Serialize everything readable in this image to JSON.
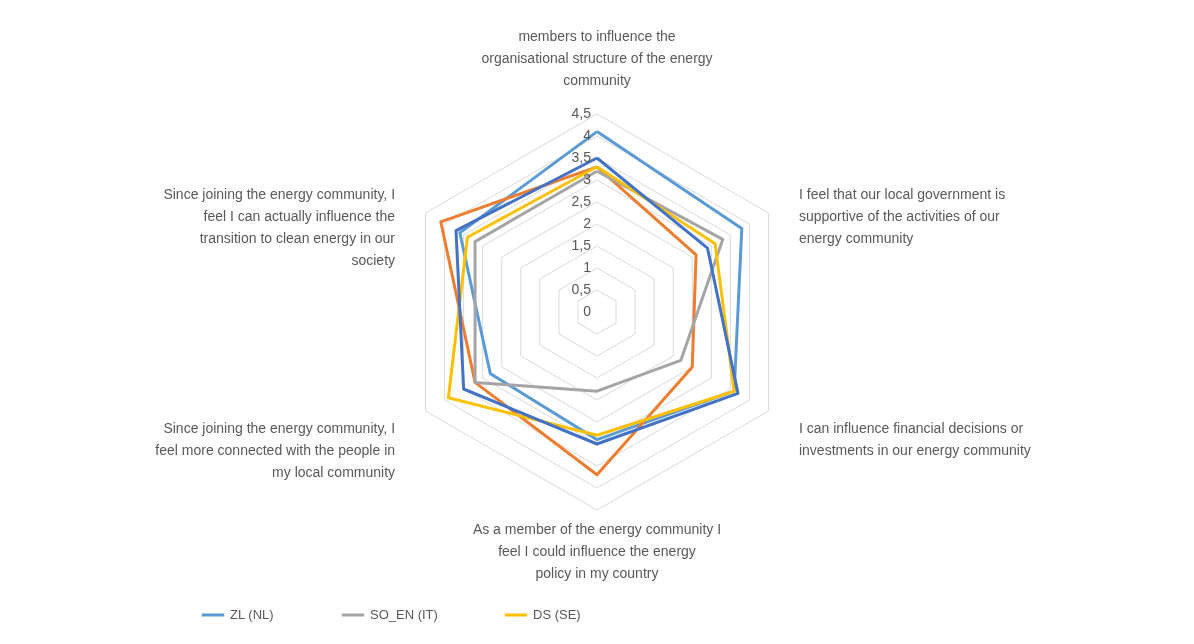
{
  "chart_data": {
    "type": "radar",
    "categories": [
      "members to influence the organisational structure of the energy community",
      "I feel that our local government is supportive of the activities of our energy community",
      "I can influence financial decisions or investments in our energy community",
      "As a member of the energy community I feel I could influence the energy policy in my country",
      "Since joining the energy community, I feel more connected with the people in my local community",
      "Since joining the energy community, I feel I can actually influence the transition to clean energy in our society"
    ],
    "series": [
      {
        "name": "ZL (NL)",
        "color": "#5b9bd5",
        "values": [
          4.1,
          3.8,
          3.6,
          2.9,
          2.8,
          3.6
        ]
      },
      {
        "color": "#ed7d31",
        "values": [
          3.3,
          2.6,
          2.5,
          3.7,
          3.2,
          4.1
        ]
      },
      {
        "name": "SO_EN (IT)",
        "color": "#a5a5a5",
        "values": [
          3.2,
          3.3,
          2.2,
          1.8,
          3.2,
          3.2
        ]
      },
      {
        "name": "DS (SE)",
        "color": "#ffc000",
        "values": [
          3.3,
          3.1,
          3.6,
          2.8,
          3.9,
          3.4
        ]
      },
      {
        "color": "#4472c4",
        "values": [
          3.5,
          2.9,
          3.7,
          3.0,
          3.5,
          3.7
        ]
      }
    ],
    "ylim": [
      0,
      4.5
    ],
    "yticks": [
      0,
      {
        "value": 0.5,
        "label": "0,5"
      },
      1,
      {
        "value": 1.5,
        "label": "1,5"
      },
      2,
      {
        "value": 2.5,
        "label": "2,5"
      },
      3,
      {
        "value": 3.5,
        "label": "3,5"
      },
      4,
      {
        "value": 4.5,
        "label": "4,5"
      }
    ],
    "grid": true,
    "legend": "bottom",
    "line_style": "solid",
    "marker": "none"
  }
}
